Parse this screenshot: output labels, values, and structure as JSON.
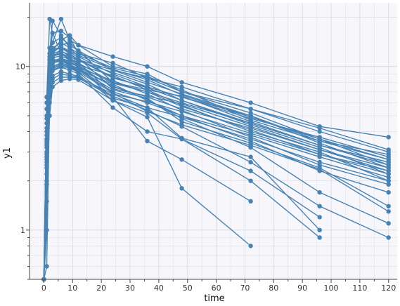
{
  "chart_data": {
    "type": "line",
    "xlabel": "time",
    "ylabel": "y1",
    "y_scale": "log",
    "xlim": [
      -5,
      123
    ],
    "ylim": [
      0.5,
      24.5
    ],
    "x_ticks": [
      0,
      10,
      20,
      30,
      40,
      50,
      60,
      70,
      80,
      90,
      100,
      110,
      120
    ],
    "x_tick_labels": [
      "0",
      "10",
      "20",
      "30",
      "40",
      "50",
      "60",
      "70",
      "80",
      "90",
      "100",
      "110",
      "120"
    ],
    "y_tick_values": [
      1,
      10
    ],
    "y_tick_labels": [
      "1",
      "10"
    ],
    "grid": true,
    "colors": {
      "series": "#4682b4",
      "plot_background": "#f7f7fb",
      "grid": "#dcdce6"
    },
    "series": [
      {
        "x": [
          0,
          1,
          2,
          3,
          6,
          9,
          12,
          24,
          36,
          48,
          72,
          96,
          120
        ],
        "y": [
          0.5,
          6.5,
          19.5,
          16,
          12,
          11.5,
          11,
          9.5,
          8.5,
          7.5,
          5.5,
          4.2,
          3.1
        ]
      },
      {
        "x": [
          0,
          1,
          2,
          3,
          6,
          9,
          12,
          24,
          36,
          48,
          72,
          96,
          120
        ],
        "y": [
          0.5,
          3.5,
          13,
          14,
          19.5,
          14.5,
          13.5,
          11.5,
          10,
          8,
          6,
          4.3,
          3.7
        ]
      },
      {
        "x": [
          0,
          1,
          2,
          3,
          6,
          9,
          12,
          24,
          36,
          48,
          72,
          96,
          120
        ],
        "y": [
          0.5,
          2.7,
          11.5,
          16,
          16.5,
          15,
          12,
          10.5,
          8.5,
          7,
          5.5,
          4,
          3
        ]
      },
      {
        "x": [
          0,
          1,
          2,
          3,
          6,
          9,
          12,
          24,
          36,
          48,
          72,
          96,
          120
        ],
        "y": [
          0.5,
          1.9,
          12,
          19,
          15.5,
          13,
          11.5,
          9,
          7.5,
          6.5,
          5,
          3.5,
          2.7
        ]
      },
      {
        "x": [
          0,
          1,
          2,
          3,
          6,
          9,
          12,
          24,
          36,
          48,
          72,
          96,
          120
        ],
        "y": [
          0.5,
          1.0,
          8.5,
          12.5,
          14.5,
          15.5,
          13.5,
          10,
          9,
          7,
          5.2,
          3.6,
          2.5
        ]
      },
      {
        "x": [
          0,
          1,
          2,
          3,
          6,
          9,
          12,
          24,
          36,
          48,
          72,
          96,
          120
        ],
        "y": [
          0.5,
          0.6,
          6.5,
          12,
          13.5,
          14,
          12.5,
          9.5,
          8,
          6.8,
          5,
          3.4,
          2.4
        ]
      },
      {
        "x": [
          0,
          1,
          2,
          3,
          6,
          9,
          12,
          24,
          36,
          48,
          72,
          96,
          120
        ],
        "y": [
          0.5,
          6.5,
          11.5,
          12.5,
          13,
          12,
          11,
          8.5,
          7.5,
          6.5,
          4.8,
          3.7,
          2.8
        ]
      },
      {
        "x": [
          0,
          1,
          2,
          3,
          6,
          9,
          12,
          24,
          36,
          48,
          72,
          96,
          120
        ],
        "y": [
          0.5,
          4.5,
          10,
          11.5,
          12,
          11,
          10.5,
          8,
          7,
          6,
          4.5,
          3.3,
          2.6
        ]
      },
      {
        "x": [
          0,
          1,
          2,
          3,
          6,
          9,
          12,
          24,
          36,
          48,
          72,
          96,
          120
        ],
        "y": [
          0.5,
          3.2,
          9.5,
          11,
          11,
          10.5,
          10,
          7.5,
          6.5,
          5.5,
          4.2,
          3.1,
          2.3
        ]
      },
      {
        "x": [
          0,
          1,
          2,
          3,
          6,
          9,
          12,
          24,
          36,
          48,
          72,
          96,
          120
        ],
        "y": [
          0.5,
          2.8,
          8,
          10,
          10.5,
          10,
          9.5,
          7,
          6,
          5,
          3.8,
          2.8,
          2.1
        ]
      },
      {
        "x": [
          0,
          1,
          2,
          3,
          6,
          9,
          12,
          24,
          36,
          48,
          72,
          96,
          120
        ],
        "y": [
          0.5,
          6,
          11,
          13,
          14,
          13,
          12,
          9.8,
          8.7,
          7.2,
          4.7,
          3.5,
          2.9
        ]
      },
      {
        "x": [
          0,
          1,
          2,
          3,
          6,
          9,
          12,
          24,
          36,
          48,
          72,
          96,
          120
        ],
        "y": [
          0.5,
          5,
          10.5,
          12,
          12.5,
          11.5,
          10.8,
          9.2,
          7.8,
          6.2,
          4.4,
          3.2,
          2.2
        ]
      },
      {
        "x": [
          0,
          1,
          2,
          3,
          6,
          9,
          12,
          24,
          36,
          48,
          72,
          96,
          120
        ],
        "y": [
          0.5,
          4,
          9.8,
          11.3,
          11.6,
          11,
          10.2,
          8.8,
          7.2,
          5.8,
          4,
          3,
          2
        ]
      },
      {
        "x": [
          0,
          1,
          2,
          3,
          6,
          9,
          12,
          24,
          36,
          48,
          72,
          96,
          120
        ],
        "y": [
          0.5,
          3,
          9,
          10.5,
          10.8,
          10.2,
          9.8,
          8.2,
          6.8,
          5.4,
          3.7,
          2.5,
          1.9
        ]
      },
      {
        "x": [
          0,
          1,
          2,
          3,
          6,
          9,
          12,
          24,
          36,
          48,
          72,
          96,
          120
        ],
        "y": [
          0.5,
          2.5,
          7.5,
          9.5,
          10,
          9.8,
          9.5,
          7.8,
          6.2,
          5,
          3.5,
          2.3,
          1.7
        ]
      },
      {
        "x": [
          0,
          1,
          2,
          3,
          6,
          9,
          12,
          24,
          36,
          48,
          72,
          96,
          120
        ],
        "y": [
          0.5,
          5.5,
          12,
          14,
          15,
          13.5,
          12.5,
          8,
          7.2,
          6.6,
          4.6,
          3.3,
          2.6
        ]
      },
      {
        "x": [
          0,
          1,
          2,
          3,
          6,
          9,
          12,
          24,
          36,
          48,
          72,
          96,
          120
        ],
        "y": [
          0.5,
          4.8,
          11,
          12.8,
          13,
          12.3,
          11.3,
          7.3,
          6.6,
          5.9,
          4.3,
          3.1,
          2.4
        ]
      },
      {
        "x": [
          0,
          1,
          2,
          3,
          6,
          9,
          12,
          24,
          36,
          48,
          72,
          96,
          120
        ],
        "y": [
          0.5,
          3.8,
          10,
          11.8,
          12,
          11.2,
          10.6,
          6.8,
          6.1,
          5.3,
          3.9,
          2.9,
          2.3
        ]
      },
      {
        "x": [
          0,
          1,
          2,
          3,
          6,
          9,
          12,
          24,
          36,
          48,
          72,
          96,
          120
        ],
        "y": [
          0.5,
          2.9,
          9.2,
          10.8,
          11.2,
          10.8,
          9.9,
          6.4,
          5.6,
          4.9,
          3.6,
          2.6,
          2.0
        ]
      },
      {
        "x": [
          0,
          1,
          2,
          3,
          6,
          9,
          12,
          24,
          36,
          48,
          72,
          96,
          120
        ],
        "y": [
          0.5,
          4.2,
          10.2,
          12.2,
          13.2,
          12.4,
          11.7,
          9.6,
          8.3,
          6.7,
          4.9,
          3.6,
          2.7
        ]
      },
      {
        "x": [
          0,
          1,
          2,
          3,
          6,
          9,
          12,
          24,
          36,
          48,
          72,
          96,
          120
        ],
        "y": [
          0.5,
          3.6,
          9.6,
          11.6,
          12.4,
          11.8,
          11.1,
          8.6,
          7.4,
          6.2,
          4.5,
          3.3,
          2.5
        ]
      },
      {
        "x": [
          0,
          1,
          2,
          3,
          6,
          9,
          12,
          24,
          36,
          48,
          72,
          96,
          120
        ],
        "y": [
          0.5,
          3.3,
          8.8,
          10.6,
          11.1,
          10.7,
          10.1,
          7.9,
          7.0,
          5.7,
          4.1,
          2.9,
          2.2
        ]
      },
      {
        "x": [
          0,
          1,
          2,
          3,
          6,
          9,
          12,
          24,
          36,
          48,
          72,
          96,
          120
        ],
        "y": [
          0.5,
          3.0,
          8.3,
          10.0,
          10.5,
          10.1,
          9.6,
          7.2,
          6.4,
          4.6,
          3.4,
          2.4,
          1.4
        ]
      },
      {
        "x": [
          0,
          1,
          2,
          3,
          6,
          9,
          12,
          24,
          36,
          48,
          72,
          96,
          120
        ],
        "y": [
          0.5,
          2.6,
          8.0,
          9.7,
          10.2,
          9.9,
          9.3,
          6.9,
          5.3,
          4.4,
          3.3,
          2.35,
          1.3
        ]
      },
      {
        "x": [
          0,
          1,
          2,
          3,
          6,
          9,
          12,
          24,
          36,
          48,
          72,
          96,
          120
        ],
        "y": [
          0.5,
          3.4,
          9.0,
          10.4,
          11.0,
          10.3,
          9.7,
          7.6,
          6.3,
          4.8,
          3.2,
          1.7,
          1.1
        ]
      },
      {
        "x": [
          0,
          1,
          2,
          3,
          6,
          9,
          12,
          24,
          36,
          48,
          72,
          96,
          120
        ],
        "y": [
          0.5,
          2.2,
          7.0,
          8.8,
          9.3,
          9.0,
          8.7,
          6.6,
          5.4,
          4.3,
          2.6,
          1.4,
          0.9
        ]
      },
      {
        "x": [
          0,
          1,
          2,
          3,
          6,
          9,
          12,
          24,
          36,
          48,
          72,
          96
        ],
        "y": [
          0.5,
          2.8,
          8.5,
          9.8,
          10.3,
          9.8,
          9.2,
          6.2,
          5.2,
          3.6,
          2.3,
          1.2
        ]
      },
      {
        "x": [
          0,
          1,
          2,
          3,
          6,
          9,
          12,
          24,
          36,
          48,
          72,
          96
        ],
        "y": [
          0.5,
          2.4,
          7.8,
          9.4,
          9.9,
          9.5,
          9.0,
          5.6,
          4.0,
          3.6,
          2.0,
          0.9
        ]
      },
      {
        "x": [
          0,
          1,
          2,
          3,
          6,
          9,
          12,
          24,
          36,
          48,
          72,
          96
        ],
        "y": [
          0.5,
          2.0,
          6.6,
          8.4,
          9.0,
          8.8,
          8.6,
          6.8,
          5.6,
          3.65,
          2.8,
          1.0
        ]
      },
      {
        "x": [
          0,
          1,
          2,
          3,
          6,
          9,
          12,
          24,
          36,
          48,
          72
        ],
        "y": [
          0.5,
          1.9,
          6.0,
          8.0,
          8.6,
          8.6,
          8.5,
          6.5,
          3.5,
          2.7,
          1.5
        ]
      },
      {
        "x": [
          0,
          1,
          2,
          3,
          6,
          9,
          12,
          24,
          36,
          48,
          72
        ],
        "y": [
          0.5,
          1.5,
          5.0,
          7.5,
          8.2,
          8.4,
          8.3,
          6.2,
          4.9,
          1.8,
          0.8
        ]
      }
    ]
  }
}
